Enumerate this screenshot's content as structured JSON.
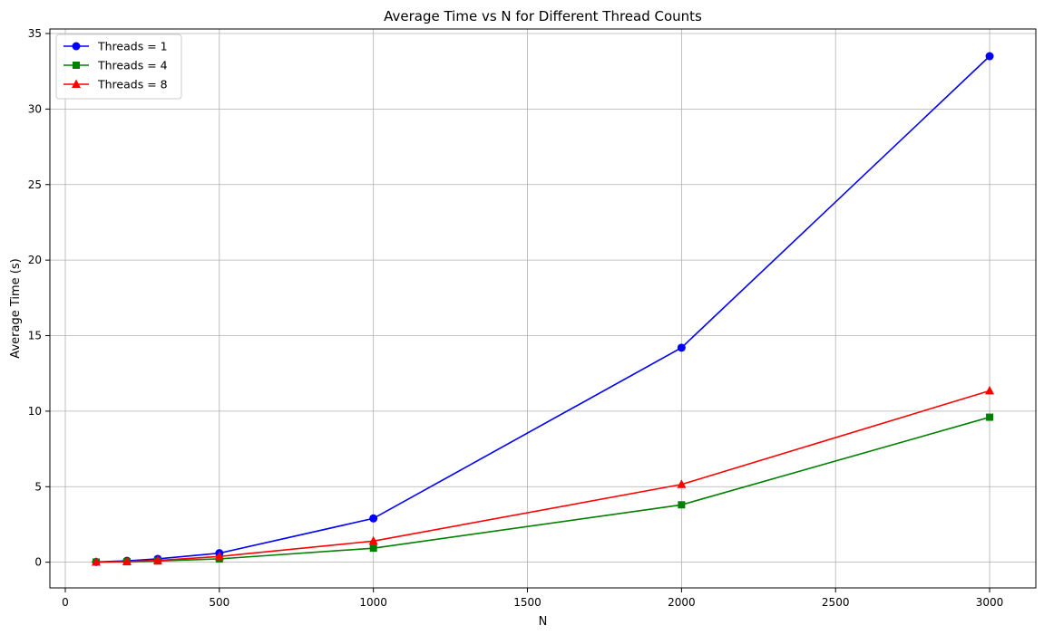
{
  "chart_data": {
    "type": "line",
    "title": "Average Time vs N for Different Thread Counts",
    "xlabel": "N",
    "ylabel": "Average Time (s)",
    "xlim": [
      -50,
      3150
    ],
    "ylim": [
      -1.7,
      35.3
    ],
    "xticks": [
      0,
      500,
      1000,
      1500,
      2000,
      2500,
      3000
    ],
    "yticks": [
      0,
      5,
      10,
      15,
      20,
      25,
      30,
      35
    ],
    "grid": true,
    "legend_position": "top-left",
    "x": [
      100,
      200,
      300,
      500,
      1000,
      2000,
      3000
    ],
    "series": [
      {
        "name": "Threads = 1",
        "color": "#0000ff",
        "marker": "circle",
        "values": [
          0.02,
          0.09,
          0.22,
          0.6,
          2.9,
          14.2,
          33.5
        ]
      },
      {
        "name": "Threads = 4",
        "color": "#008000",
        "marker": "square",
        "values": [
          0.01,
          0.03,
          0.08,
          0.22,
          0.93,
          3.8,
          9.6
        ]
      },
      {
        "name": "Threads = 8",
        "color": "#ff0000",
        "marker": "triangle",
        "values": [
          0.01,
          0.04,
          0.12,
          0.38,
          1.4,
          5.15,
          11.35
        ]
      }
    ]
  }
}
